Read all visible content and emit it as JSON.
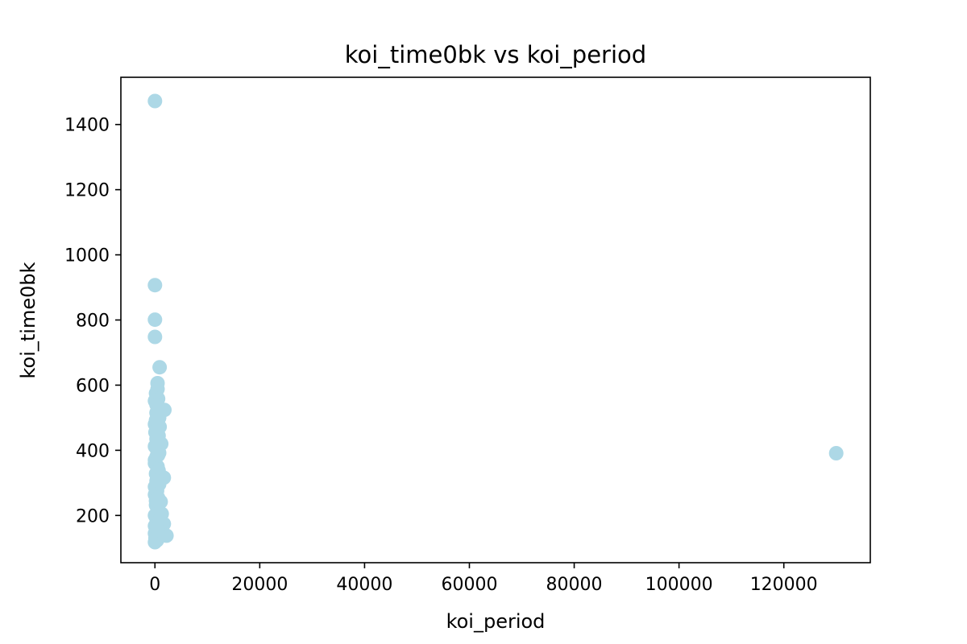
{
  "chart_data": {
    "type": "scatter",
    "title": "koi_time0bk vs koi_period",
    "xlabel": "koi_period",
    "ylabel": "koi_time0bk",
    "xlim": [
      -6500,
      136500
    ],
    "ylim": [
      55,
      1545
    ],
    "xticks": [
      0,
      20000,
      40000,
      60000,
      80000,
      100000,
      120000
    ],
    "yticks": [
      200,
      400,
      600,
      800,
      1000,
      1200,
      1400
    ],
    "grid": false,
    "marker_color": "#add8e6",
    "series": [
      {
        "points": [
          [
            0,
            1472
          ],
          [
            0,
            907
          ],
          [
            0,
            801
          ],
          [
            0,
            748
          ],
          [
            900,
            655
          ],
          [
            500,
            606
          ],
          [
            500,
            588
          ],
          [
            200,
            575
          ],
          [
            600,
            558
          ],
          [
            0,
            552
          ],
          [
            400,
            542
          ],
          [
            1800,
            524
          ],
          [
            300,
            515
          ],
          [
            800,
            500
          ],
          [
            200,
            492
          ],
          [
            0,
            480
          ],
          [
            500,
            468
          ],
          [
            100,
            455
          ],
          [
            700,
            445
          ],
          [
            300,
            435
          ],
          [
            1200,
            420
          ],
          [
            0,
            412
          ],
          [
            400,
            402
          ],
          [
            800,
            392
          ],
          [
            300,
            380
          ],
          [
            0,
            370
          ],
          [
            0,
            360
          ],
          [
            500,
            350
          ],
          [
            700,
            338
          ],
          [
            200,
            328
          ],
          [
            1700,
            316
          ],
          [
            300,
            306
          ],
          [
            800,
            296
          ],
          [
            0,
            288
          ],
          [
            400,
            276
          ],
          [
            0,
            264
          ],
          [
            600,
            254
          ],
          [
            1100,
            242
          ],
          [
            200,
            232
          ],
          [
            500,
            222
          ],
          [
            800,
            212
          ],
          [
            0,
            200
          ],
          [
            300,
            190
          ],
          [
            600,
            180
          ],
          [
            1700,
            174
          ],
          [
            0,
            168
          ],
          [
            300,
            158
          ],
          [
            700,
            150
          ],
          [
            0,
            145
          ],
          [
            2200,
            138
          ],
          [
            100,
            130
          ],
          [
            400,
            124
          ],
          [
            0,
            118
          ],
          [
            500,
            155
          ],
          [
            1000,
            190
          ],
          [
            200,
            245
          ],
          [
            600,
            385
          ],
          [
            900,
            472
          ],
          [
            1300,
            205
          ],
          [
            300,
            540
          ],
          [
            130000,
            391
          ]
        ]
      }
    ]
  }
}
